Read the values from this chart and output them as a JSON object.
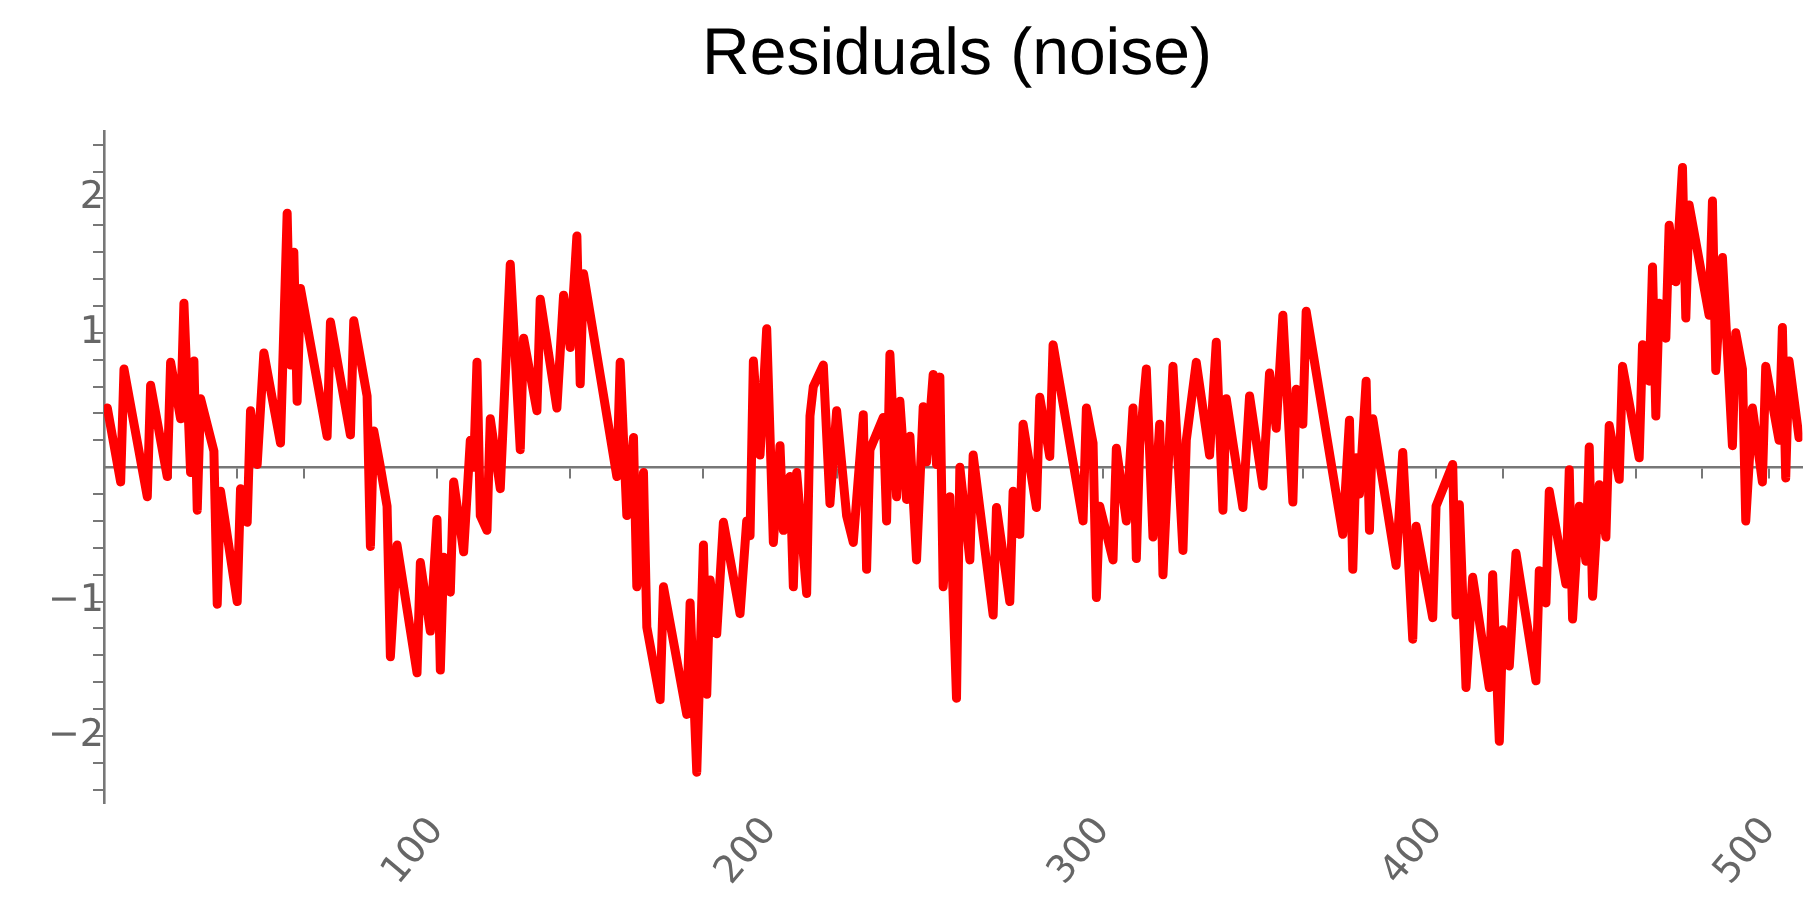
{
  "chart_data": {
    "type": "line",
    "title": "Residuals (noise)",
    "x": [
      1,
      5,
      6,
      13,
      14,
      19,
      20,
      23,
      24,
      26,
      27,
      28,
      29,
      33,
      34,
      35,
      40,
      41,
      43,
      44,
      46,
      48,
      53,
      55,
      56,
      57,
      58,
      59,
      67,
      68,
      74,
      75,
      79,
      80,
      81,
      83,
      85,
      86,
      88,
      94,
      95,
      98,
      100,
      101,
      102,
      104,
      105,
      108,
      110,
      111,
      112,
      113,
      115,
      116,
      119,
      122,
      125,
      126,
      130,
      131,
      136,
      138,
      140,
      142,
      143,
      144,
      154,
      155,
      157,
      159,
      160,
      162,
      163,
      167,
      168,
      175,
      176,
      178,
      180,
      181,
      182,
      184,
      186,
      191,
      193,
      194,
      195,
      197,
      199,
      201,
      203,
      204,
      206,
      207,
      208,
      211,
      212,
      213,
      216,
      218,
      220,
      223,
      225,
      228,
      229,
      230,
      234,
      235,
      236,
      238,
      239,
      241,
      242,
      244,
      246,
      247,
      249,
      250,
      251,
      252,
      254,
      256,
      257,
      260,
      261,
      267,
      268,
      272,
      273,
      275,
      276,
      280,
      281,
      284,
      285,
      294,
      295,
      297,
      298,
      299,
      303,
      304,
      307,
      309,
      310,
      311,
      313,
      315,
      317,
      318,
      321,
      324,
      325,
      328,
      332,
      334,
      336,
      337,
      339,
      342,
      344,
      348,
      350,
      352,
      354,
      357,
      358,
      360,
      361,
      372,
      374,
      375,
      376,
      377,
      379,
      380,
      381,
      388,
      390,
      393,
      394,
      399,
      400,
      405,
      406,
      407,
      409,
      411,
      416,
      417,
      419,
      420,
      422,
      424,
      430,
      431,
      433,
      434,
      439,
      440,
      441,
      443,
      445,
      446,
      447,
      449,
      451,
      452,
      455,
      456,
      461,
      462,
      464,
      465,
      466,
      467,
      469,
      470,
      472,
      474,
      475,
      476,
      482,
      483,
      484,
      486,
      489,
      490,
      492,
      493,
      495,
      498,
      499,
      503,
      504,
      505,
      506,
      509
    ],
    "series": [
      {
        "color": "#ff0000",
        "values": [
          0.44,
          -0.11,
          0.73,
          -0.22,
          0.61,
          -0.07,
          0.78,
          0.36,
          1.22,
          -0.04,
          0.79,
          -0.32,
          0.51,
          0.12,
          -1.02,
          -0.18,
          -1.0,
          -0.16,
          -0.41,
          0.42,
          0.02,
          0.85,
          0.18,
          1.89,
          0.76,
          1.6,
          0.49,
          1.33,
          0.23,
          1.08,
          0.24,
          1.09,
          0.53,
          -0.59,
          0.27,
          0.0,
          -0.29,
          -1.41,
          -0.58,
          -1.53,
          -0.71,
          -1.22,
          -0.39,
          -1.51,
          -0.67,
          -0.93,
          -0.11,
          -0.63,
          0.2,
          0.0,
          0.78,
          -0.36,
          -0.47,
          0.36,
          -0.16,
          1.51,
          0.13,
          0.96,
          0.42,
          1.25,
          0.44,
          1.28,
          0.89,
          1.72,
          0.62,
          1.44,
          -0.07,
          0.78,
          -0.36,
          0.22,
          -0.89,
          -0.04,
          -1.19,
          -1.73,
          -0.89,
          -1.84,
          -1.01,
          -2.27,
          -0.58,
          -1.69,
          -0.84,
          -1.24,
          -0.41,
          -1.09,
          -0.4,
          -0.51,
          0.79,
          0.09,
          1.03,
          -0.56,
          0.16,
          -0.47,
          -0.07,
          -0.89,
          -0.04,
          -0.94,
          0.38,
          0.6,
          0.76,
          -0.27,
          0.42,
          -0.36,
          -0.56,
          0.39,
          -0.76,
          0.13,
          0.37,
          -0.4,
          0.84,
          -0.22,
          0.49,
          -0.24,
          0.23,
          -0.69,
          0.45,
          0.04,
          0.69,
          0.02,
          0.67,
          -0.89,
          -0.22,
          -1.72,
          0.0,
          -0.69,
          0.09,
          -1.1,
          -0.3,
          -1.0,
          -0.18,
          -0.5,
          0.32,
          -0.3,
          0.52,
          0.08,
          0.91,
          -0.4,
          0.44,
          0.18,
          -0.97,
          -0.29,
          -0.69,
          0.14,
          -0.4,
          0.44,
          -0.68,
          0.16,
          0.73,
          -0.52,
          0.32,
          -0.8,
          0.75,
          -0.62,
          0.2,
          0.78,
          0.09,
          0.93,
          -0.32,
          0.51,
          0.18,
          -0.3,
          0.53,
          -0.14,
          0.7,
          0.29,
          1.13,
          -0.26,
          0.58,
          0.32,
          1.16,
          -0.5,
          0.35,
          -0.76,
          0.07,
          -0.2,
          0.64,
          -0.47,
          0.36,
          -0.73,
          0.11,
          -1.28,
          -0.44,
          -1.12,
          -0.29,
          0.02,
          -1.1,
          -0.28,
          -1.64,
          -0.82,
          -1.64,
          -0.8,
          -2.04,
          -1.21,
          -1.48,
          -0.64,
          -1.59,
          -0.77,
          -1.01,
          -0.18,
          -0.87,
          -0.02,
          -1.13,
          -0.29,
          -0.7,
          0.15,
          -0.96,
          -0.13,
          -0.52,
          0.31,
          -0.09,
          0.75,
          0.07,
          0.91,
          0.64,
          1.49,
          0.38,
          1.22,
          0.96,
          1.8,
          1.38,
          2.23,
          1.11,
          1.95,
          1.13,
          1.98,
          0.72,
          1.56,
          0.16,
          1.0,
          0.73,
          -0.4,
          0.44,
          -0.11,
          0.75,
          0.2,
          1.04,
          -0.08,
          0.79,
          0.22
        ]
      }
    ],
    "xlim": [
      0,
      510
    ],
    "ylim": [
      -2.5,
      2.5
    ],
    "xticks": [
      {
        "value": 20,
        "label": null
      },
      {
        "value": 40,
        "label": null
      },
      {
        "value": 60,
        "label": null
      },
      {
        "value": 80,
        "label": null
      },
      100,
      {
        "value": 120,
        "label": null
      },
      {
        "value": 140,
        "label": null
      },
      {
        "value": 160,
        "label": null
      },
      {
        "value": 180,
        "label": null
      },
      200,
      {
        "value": 220,
        "label": null
      },
      {
        "value": 240,
        "label": null
      },
      {
        "value": 260,
        "label": null
      },
      {
        "value": 280,
        "label": null
      },
      300,
      {
        "value": 320,
        "label": null
      },
      {
        "value": 340,
        "label": null
      },
      {
        "value": 360,
        "label": null
      },
      {
        "value": 380,
        "label": null
      },
      400,
      {
        "value": 420,
        "label": null
      },
      {
        "value": 440,
        "label": null
      },
      {
        "value": 460,
        "label": null
      },
      {
        "value": 480,
        "label": null
      },
      500
    ],
    "yticks": [
      {
        "value": -2.4,
        "label": null
      },
      {
        "value": -2.2,
        "label": null
      },
      -2,
      {
        "value": -1.8,
        "label": null
      },
      {
        "value": -1.6,
        "label": null
      },
      {
        "value": -1.4,
        "label": null
      },
      {
        "value": -1.2,
        "label": null
      },
      -1,
      {
        "value": -0.8,
        "label": null
      },
      {
        "value": -0.6,
        "label": null
      },
      {
        "value": -0.4,
        "label": null
      },
      {
        "value": -0.2,
        "label": null
      },
      {
        "value": 0.2,
        "label": null
      },
      {
        "value": 0.4,
        "label": null
      },
      {
        "value": 0.6,
        "label": null
      },
      {
        "value": 0.8,
        "label": null
      },
      1,
      {
        "value": 1.2,
        "label": null
      },
      {
        "value": 1.4,
        "label": null
      },
      {
        "value": 1.6,
        "label": null
      },
      {
        "value": 1.8,
        "label": null
      },
      2,
      {
        "value": 2.2,
        "label": null
      },
      {
        "value": 2.4,
        "label": null
      }
    ],
    "grid": false,
    "legend": false,
    "marker": "none",
    "line_style": "solid"
  }
}
